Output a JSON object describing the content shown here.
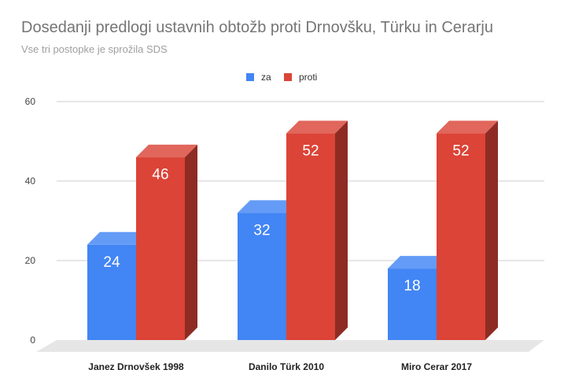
{
  "chart_data": {
    "type": "bar",
    "title": "Dosedanji predlogi ustavnih obtožb proti Drnovšku, Türku in Cerarju",
    "subtitle": "Vse tri postopke je sprožila SDS",
    "categories": [
      "Janez Drnovšek 1998",
      "Danilo Türk 2010",
      "Miro Cerar 2017"
    ],
    "series": [
      {
        "name": "za",
        "values": [
          24,
          32,
          18
        ],
        "color": "#4285f4"
      },
      {
        "name": "proti",
        "values": [
          46,
          52,
          52
        ],
        "color": "#db4437"
      }
    ],
    "ylim": [
      0,
      60
    ],
    "yticks": [
      0,
      20,
      40,
      60
    ],
    "grid": true,
    "legend_position": "top-center",
    "style": "3d-column",
    "data_labels": true
  }
}
